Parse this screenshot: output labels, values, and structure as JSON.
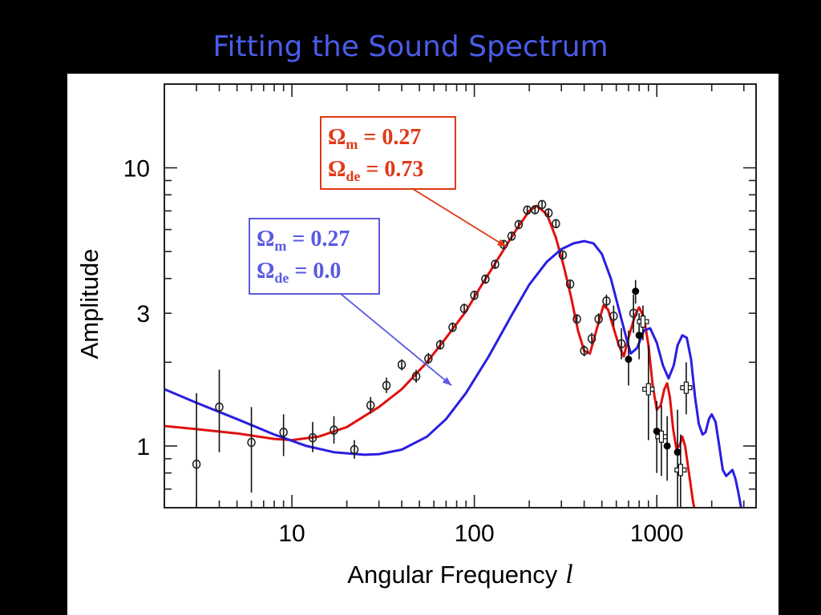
{
  "slide": {
    "title": "Fitting the Sound Spectrum"
  },
  "colors": {
    "title": "#4a5ce8",
    "red_model": "#e01010",
    "blue_model": "#2a1ee0",
    "annotation_red": "#e03818",
    "annotation_blue": "#5a5ae0"
  },
  "chart_data": {
    "type": "line",
    "xlabel": "Angular Frequency",
    "xlabel_symbol": "l",
    "ylabel": "Amplitude",
    "x_scale": "log",
    "y_scale": "log",
    "xlim": [
      2,
      3500
    ],
    "ylim": [
      0.6,
      20
    ],
    "x_ticks": [
      {
        "value": 10,
        "label": "10"
      },
      {
        "value": 100,
        "label": "100"
      },
      {
        "value": 1000,
        "label": "1000"
      }
    ],
    "y_ticks": [
      {
        "value": 1,
        "label": "1"
      },
      {
        "value": 3,
        "label": "3"
      },
      {
        "value": 10,
        "label": "10"
      }
    ],
    "grid": false,
    "annotations": [
      {
        "lines": [
          {
            "sym": "Ω",
            "sub": "m",
            "rest": " = 0.27"
          },
          {
            "sym": "Ω",
            "sub": "de",
            "rest": " = 0.73"
          }
        ],
        "color": "#e03818",
        "points_to": {
          "x": 150,
          "y": 5.2
        }
      },
      {
        "lines": [
          {
            "sym": "Ω",
            "sub": "m",
            "rest": " = 0.27"
          },
          {
            "sym": "Ω",
            "sub": "de",
            "rest": " = 0.0"
          }
        ],
        "color": "#5a5ae0",
        "points_to": {
          "x": 75,
          "y": 1.65
        }
      }
    ],
    "series": [
      {
        "key": "red-model",
        "color": "#e01010",
        "points": [
          [
            2,
            1.18
          ],
          [
            3,
            1.15
          ],
          [
            5,
            1.11
          ],
          [
            8,
            1.06
          ],
          [
            10,
            1.05
          ],
          [
            14,
            1.08
          ],
          [
            20,
            1.17
          ],
          [
            30,
            1.38
          ],
          [
            40,
            1.6
          ],
          [
            55,
            2.0
          ],
          [
            70,
            2.45
          ],
          [
            90,
            3.05
          ],
          [
            110,
            3.8
          ],
          [
            140,
            4.9
          ],
          [
            170,
            6.0
          ],
          [
            200,
            7.0
          ],
          [
            220,
            7.3
          ],
          [
            250,
            6.8
          ],
          [
            280,
            5.6
          ],
          [
            310,
            4.4
          ],
          [
            340,
            3.4
          ],
          [
            370,
            2.6
          ],
          [
            400,
            2.2
          ],
          [
            430,
            2.15
          ],
          [
            470,
            2.65
          ],
          [
            510,
            3.2
          ],
          [
            540,
            3.1
          ],
          [
            580,
            2.65
          ],
          [
            620,
            2.3
          ],
          [
            660,
            2.1
          ],
          [
            700,
            2.45
          ],
          [
            760,
            2.95
          ],
          [
            800,
            3.15
          ],
          [
            850,
            2.9
          ],
          [
            900,
            2.3
          ],
          [
            950,
            1.65
          ],
          [
            1000,
            1.35
          ],
          [
            1050,
            1.4
          ],
          [
            1100,
            1.6
          ],
          [
            1140,
            1.68
          ],
          [
            1180,
            1.5
          ],
          [
            1230,
            1.15
          ],
          [
            1280,
            0.98
          ],
          [
            1330,
            1.0
          ],
          [
            1380,
            1.08
          ],
          [
            1430,
            1.0
          ],
          [
            1500,
            0.8
          ],
          [
            1580,
            0.63
          ],
          [
            1620,
            0.58
          ]
        ]
      },
      {
        "key": "blue-model",
        "color": "#2a1ee0",
        "points": [
          [
            2,
            1.6
          ],
          [
            3,
            1.43
          ],
          [
            5,
            1.25
          ],
          [
            8,
            1.1
          ],
          [
            12,
            1.0
          ],
          [
            17,
            0.95
          ],
          [
            25,
            0.93
          ],
          [
            30,
            0.935
          ],
          [
            40,
            0.97
          ],
          [
            55,
            1.08
          ],
          [
            70,
            1.25
          ],
          [
            90,
            1.55
          ],
          [
            120,
            2.1
          ],
          [
            160,
            2.95
          ],
          [
            200,
            3.8
          ],
          [
            250,
            4.6
          ],
          [
            300,
            5.1
          ],
          [
            350,
            5.35
          ],
          [
            400,
            5.45
          ],
          [
            450,
            5.35
          ],
          [
            500,
            4.9
          ],
          [
            560,
            4.0
          ],
          [
            620,
            3.1
          ],
          [
            680,
            2.45
          ],
          [
            720,
            2.15
          ],
          [
            780,
            2.25
          ],
          [
            850,
            2.6
          ],
          [
            920,
            2.65
          ],
          [
            1000,
            2.35
          ],
          [
            1080,
            1.95
          ],
          [
            1160,
            1.75
          ],
          [
            1240,
            1.95
          ],
          [
            1300,
            2.3
          ],
          [
            1380,
            2.5
          ],
          [
            1460,
            2.45
          ],
          [
            1540,
            2.05
          ],
          [
            1620,
            1.5
          ],
          [
            1700,
            1.2
          ],
          [
            1780,
            1.1
          ],
          [
            1850,
            1.12
          ],
          [
            1930,
            1.25
          ],
          [
            2000,
            1.3
          ],
          [
            2100,
            1.22
          ],
          [
            2200,
            1.0
          ],
          [
            2300,
            0.82
          ],
          [
            2400,
            0.78
          ],
          [
            2500,
            0.8
          ],
          [
            2600,
            0.82
          ],
          [
            2700,
            0.76
          ],
          [
            2800,
            0.68
          ],
          [
            2900,
            0.6
          ]
        ]
      }
    ],
    "data_points": [
      {
        "x": 3,
        "y": 0.86,
        "lo": 0.6,
        "hi": 1.55,
        "marker": "circle"
      },
      {
        "x": 4,
        "y": 1.38,
        "lo": 0.95,
        "hi": 1.88,
        "marker": "circle"
      },
      {
        "x": 6,
        "y": 1.03,
        "lo": 0.68,
        "hi": 1.38,
        "marker": "circle"
      },
      {
        "x": 9,
        "y": 1.12,
        "lo": 0.92,
        "hi": 1.3,
        "marker": "circle"
      },
      {
        "x": 13,
        "y": 1.07,
        "lo": 0.95,
        "hi": 1.22,
        "marker": "circle"
      },
      {
        "x": 17,
        "y": 1.14,
        "lo": 1.02,
        "hi": 1.28,
        "marker": "circle"
      },
      {
        "x": 22,
        "y": 0.97,
        "lo": 0.9,
        "hi": 1.05,
        "marker": "circle"
      },
      {
        "x": 27,
        "y": 1.4,
        "lo": 1.31,
        "hi": 1.5,
        "marker": "circle"
      },
      {
        "x": 33,
        "y": 1.65,
        "lo": 1.55,
        "hi": 1.76,
        "marker": "circle"
      },
      {
        "x": 40,
        "y": 1.96,
        "lo": 1.87,
        "hi": 2.05,
        "marker": "circle"
      },
      {
        "x": 48,
        "y": 1.78,
        "lo": 1.69,
        "hi": 1.88,
        "marker": "circle"
      },
      {
        "x": 56,
        "y": 2.06,
        "lo": 1.97,
        "hi": 2.16,
        "marker": "circle"
      },
      {
        "x": 65,
        "y": 2.31,
        "lo": 2.22,
        "hi": 2.41,
        "marker": "circle"
      },
      {
        "x": 76,
        "y": 2.67,
        "lo": 2.57,
        "hi": 2.78,
        "marker": "circle"
      },
      {
        "x": 88,
        "y": 3.12,
        "lo": 3.0,
        "hi": 3.25,
        "marker": "circle"
      },
      {
        "x": 100,
        "y": 3.48,
        "lo": 3.35,
        "hi": 3.62,
        "marker": "circle"
      },
      {
        "x": 115,
        "y": 3.98,
        "lo": 3.85,
        "hi": 4.12,
        "marker": "circle"
      },
      {
        "x": 130,
        "y": 4.5,
        "lo": 4.35,
        "hi": 4.65,
        "marker": "circle"
      },
      {
        "x": 145,
        "y": 5.3,
        "lo": 5.13,
        "hi": 5.47,
        "marker": "circle"
      },
      {
        "x": 160,
        "y": 5.68,
        "lo": 5.5,
        "hi": 5.86,
        "marker": "circle"
      },
      {
        "x": 175,
        "y": 6.25,
        "lo": 6.06,
        "hi": 6.45,
        "marker": "circle"
      },
      {
        "x": 195,
        "y": 7.05,
        "lo": 6.85,
        "hi": 7.25,
        "marker": "circle"
      },
      {
        "x": 215,
        "y": 7.07,
        "lo": 6.86,
        "hi": 7.28,
        "marker": "circle"
      },
      {
        "x": 235,
        "y": 7.38,
        "lo": 7.16,
        "hi": 7.6,
        "marker": "circle"
      },
      {
        "x": 255,
        "y": 6.88,
        "lo": 6.67,
        "hi": 7.1,
        "marker": "circle"
      },
      {
        "x": 280,
        "y": 6.3,
        "lo": 6.1,
        "hi": 6.51,
        "marker": "circle"
      },
      {
        "x": 305,
        "y": 4.86,
        "lo": 4.7,
        "hi": 5.02,
        "marker": "circle"
      },
      {
        "x": 335,
        "y": 3.82,
        "lo": 3.68,
        "hi": 3.96,
        "marker": "circle"
      },
      {
        "x": 365,
        "y": 2.86,
        "lo": 2.75,
        "hi": 2.98,
        "marker": "circle"
      },
      {
        "x": 400,
        "y": 2.2,
        "lo": 2.1,
        "hi": 2.3,
        "marker": "circle"
      },
      {
        "x": 440,
        "y": 2.43,
        "lo": 2.32,
        "hi": 2.55,
        "marker": "circle"
      },
      {
        "x": 480,
        "y": 2.86,
        "lo": 2.73,
        "hi": 3.0,
        "marker": "circle"
      },
      {
        "x": 530,
        "y": 3.32,
        "lo": 3.15,
        "hi": 3.5,
        "marker": "circle"
      },
      {
        "x": 580,
        "y": 2.93,
        "lo": 2.7,
        "hi": 3.2,
        "marker": "circle"
      },
      {
        "x": 640,
        "y": 2.33,
        "lo": 2.05,
        "hi": 2.65,
        "marker": "circle"
      },
      {
        "x": 700,
        "y": 2.05,
        "lo": 1.65,
        "hi": 2.6,
        "marker": "filled"
      },
      {
        "x": 745,
        "y": 3.0,
        "lo": 2.55,
        "hi": 3.5,
        "marker": "circle"
      },
      {
        "x": 765,
        "y": 3.6,
        "lo": 3.25,
        "hi": 3.95,
        "marker": "filled"
      },
      {
        "x": 800,
        "y": 2.5,
        "lo": 2.05,
        "hi": 3.0,
        "marker": "filled"
      },
      {
        "x": 840,
        "y": 2.8,
        "lo": 2.4,
        "hi": 3.2,
        "marker": "cross"
      },
      {
        "x": 900,
        "y": 1.6,
        "lo": 1.05,
        "hi": 2.3,
        "marker": "cross"
      },
      {
        "x": 1000,
        "y": 1.13,
        "lo": 0.8,
        "hi": 1.45,
        "marker": "filled"
      },
      {
        "x": 1060,
        "y": 1.08,
        "lo": 0.78,
        "hi": 1.4,
        "marker": "cross"
      },
      {
        "x": 1140,
        "y": 1.0,
        "lo": 0.75,
        "hi": 1.28,
        "marker": "filled"
      },
      {
        "x": 1300,
        "y": 0.95,
        "lo": 0.6,
        "hi": 1.35,
        "marker": "filled"
      },
      {
        "x": 1350,
        "y": 0.82,
        "lo": 0.6,
        "hi": 1.1,
        "marker": "cross"
      },
      {
        "x": 1450,
        "y": 1.62,
        "lo": 1.3,
        "hi": 2.0,
        "marker": "cross"
      }
    ]
  }
}
